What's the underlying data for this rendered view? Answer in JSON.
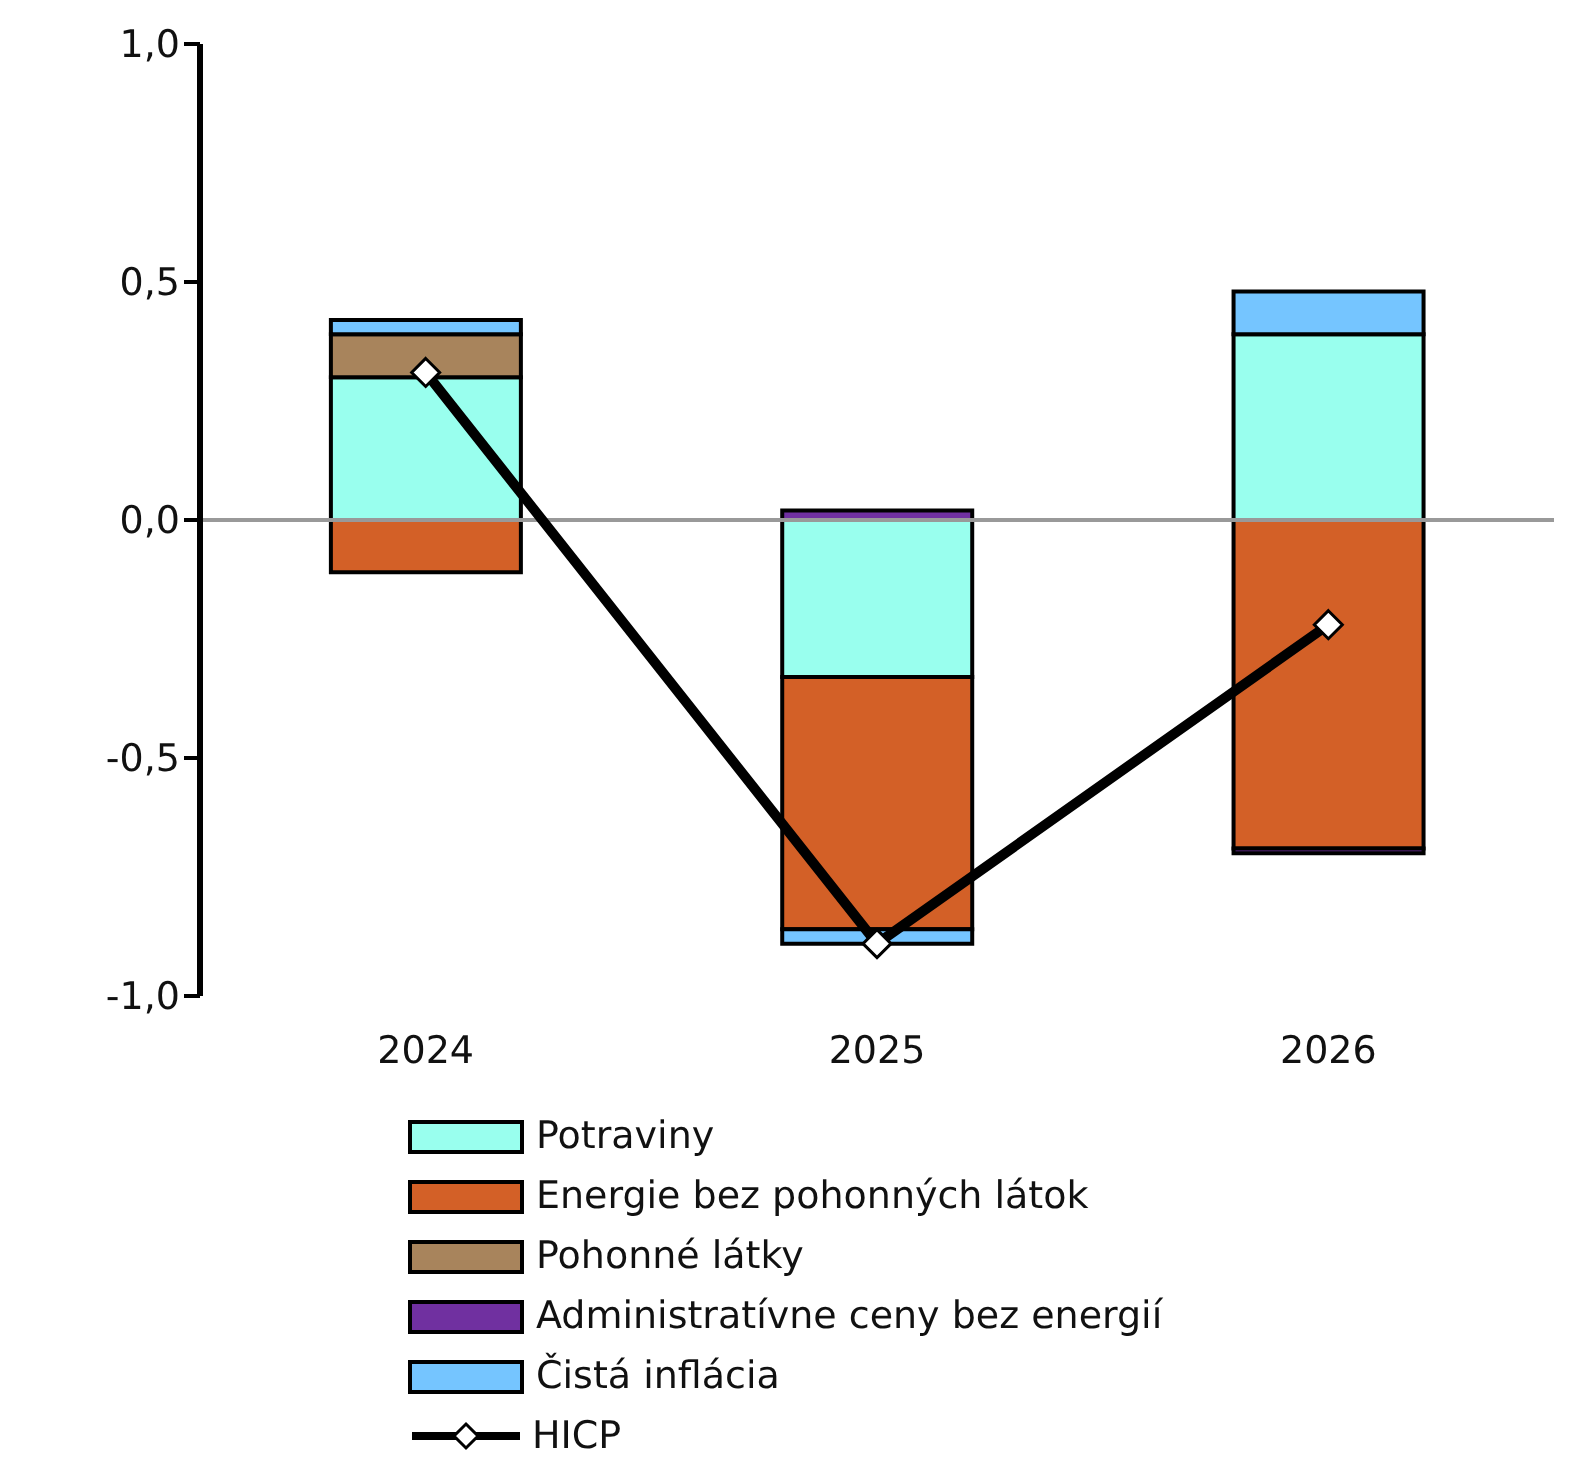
{
  "chart_data": {
    "type": "bar",
    "stacked": true,
    "categories": [
      "2024",
      "2025",
      "2026"
    ],
    "series": [
      {
        "name": "Potraviny",
        "color": "#99ffee",
        "values": [
          0.3,
          -0.33,
          0.39
        ]
      },
      {
        "name": "Energie bez pohonných látok",
        "color": "#d36027",
        "values": [
          -0.11,
          -0.53,
          -0.69
        ]
      },
      {
        "name": "Pohonné látky",
        "color": "#a8845c",
        "values": [
          0.09,
          0,
          0
        ]
      },
      {
        "name": "Administratívne ceny bez energií",
        "color": "#7030a0",
        "values": [
          0,
          0.02,
          -0.01
        ]
      },
      {
        "name": "Čistá inflácia",
        "color": "#75c5ff",
        "values": [
          0.03,
          -0.03,
          0.09
        ]
      },
      {
        "name": "HICP",
        "type": "line",
        "color": "#000000",
        "marker": "diamond",
        "values": [
          0.31,
          -0.89,
          -0.22
        ]
      }
    ],
    "ylim": [
      -1,
      1
    ],
    "yticks": [
      {
        "value": -1,
        "label": "-1,0"
      },
      {
        "value": -0.5,
        "label": "-0,5"
      },
      {
        "value": 0,
        "label": "0,0"
      },
      {
        "value": 0.5,
        "label": "0,5"
      },
      {
        "value": 1,
        "label": "1,0"
      }
    ],
    "ref_lines": [
      {
        "axis": "y",
        "value": 0,
        "color": "#999999"
      }
    ],
    "grid": false,
    "legend": "bottom"
  }
}
